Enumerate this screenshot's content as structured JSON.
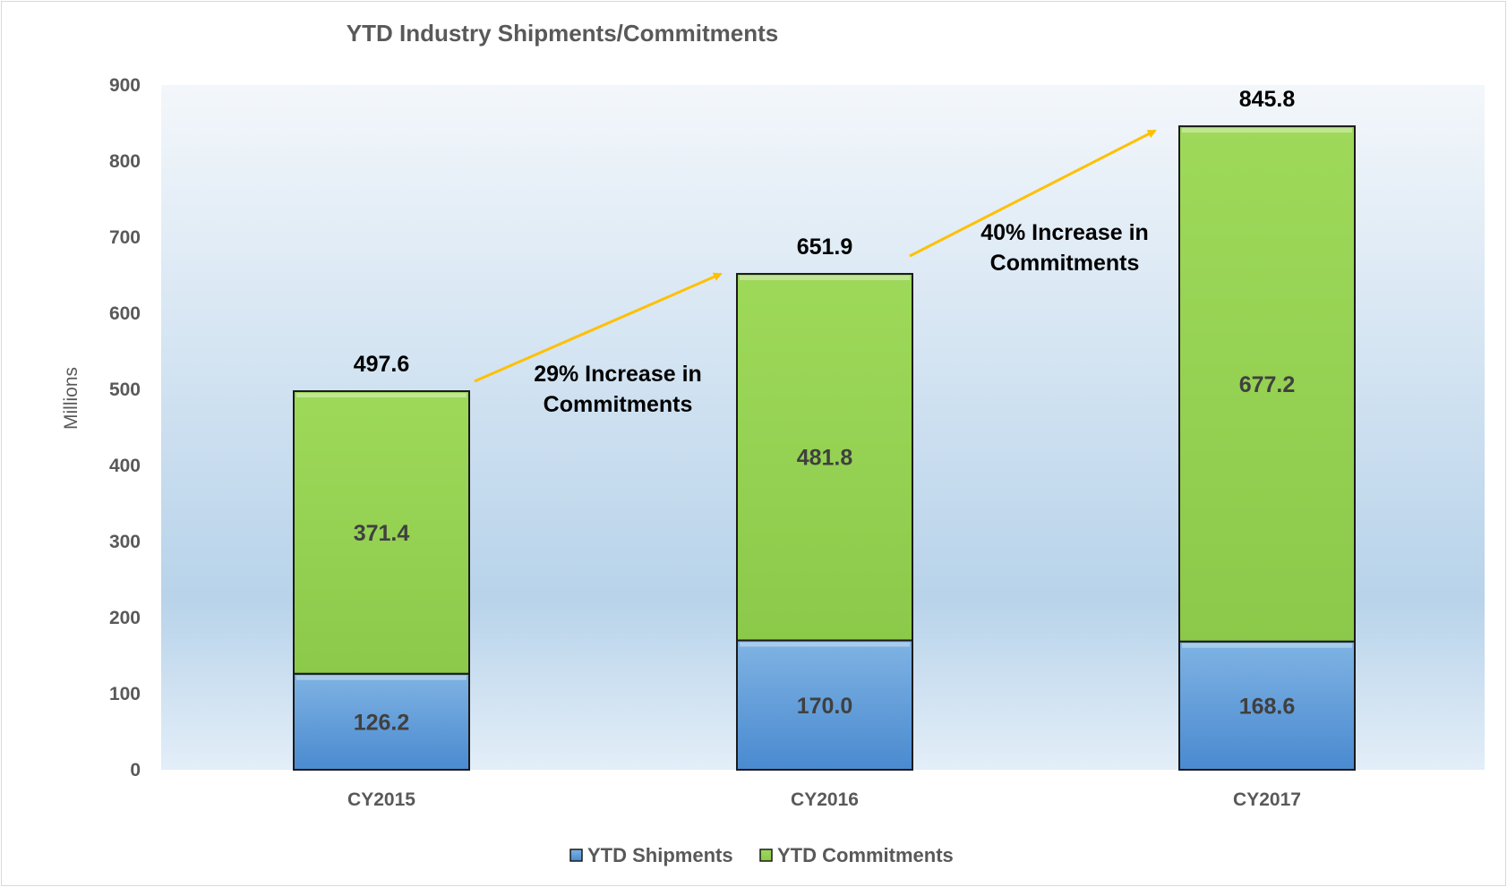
{
  "chart_data": {
    "type": "bar",
    "stacked": true,
    "title": "YTD Industry Shipments/Commitments",
    "ylabel": "Millions",
    "xlabel": "",
    "ylim": [
      0,
      900
    ],
    "yticks": [
      0,
      100,
      200,
      300,
      400,
      500,
      600,
      700,
      800,
      900
    ],
    "categories": [
      "CY2015",
      "CY2016",
      "CY2017"
    ],
    "series": [
      {
        "name": "YTD Shipments",
        "values": [
          126.2,
          170.0,
          168.6
        ],
        "labels": [
          "126.2",
          "170.0",
          "168.6"
        ],
        "color": "#5b9bd5"
      },
      {
        "name": "YTD Commitments",
        "values": [
          371.4,
          481.8,
          677.2
        ],
        "labels": [
          "371.4",
          "481.8",
          "677.2"
        ],
        "color": "#92d050"
      }
    ],
    "totals": [
      497.6,
      651.9,
      845.8
    ],
    "total_labels": [
      "497.6",
      "651.9",
      "845.8"
    ],
    "annotations": [
      {
        "lines": [
          "29% Increase in",
          "Commitments"
        ],
        "from_category": "CY2015",
        "to_category": "CY2016"
      },
      {
        "lines": [
          "40% Increase in",
          "Commitments"
        ],
        "from_category": "CY2016",
        "to_category": "CY2017"
      }
    ],
    "arrow_color": "#ffc000",
    "grid": false,
    "legend_position": "bottom",
    "plot_background": "gradient light blue"
  }
}
